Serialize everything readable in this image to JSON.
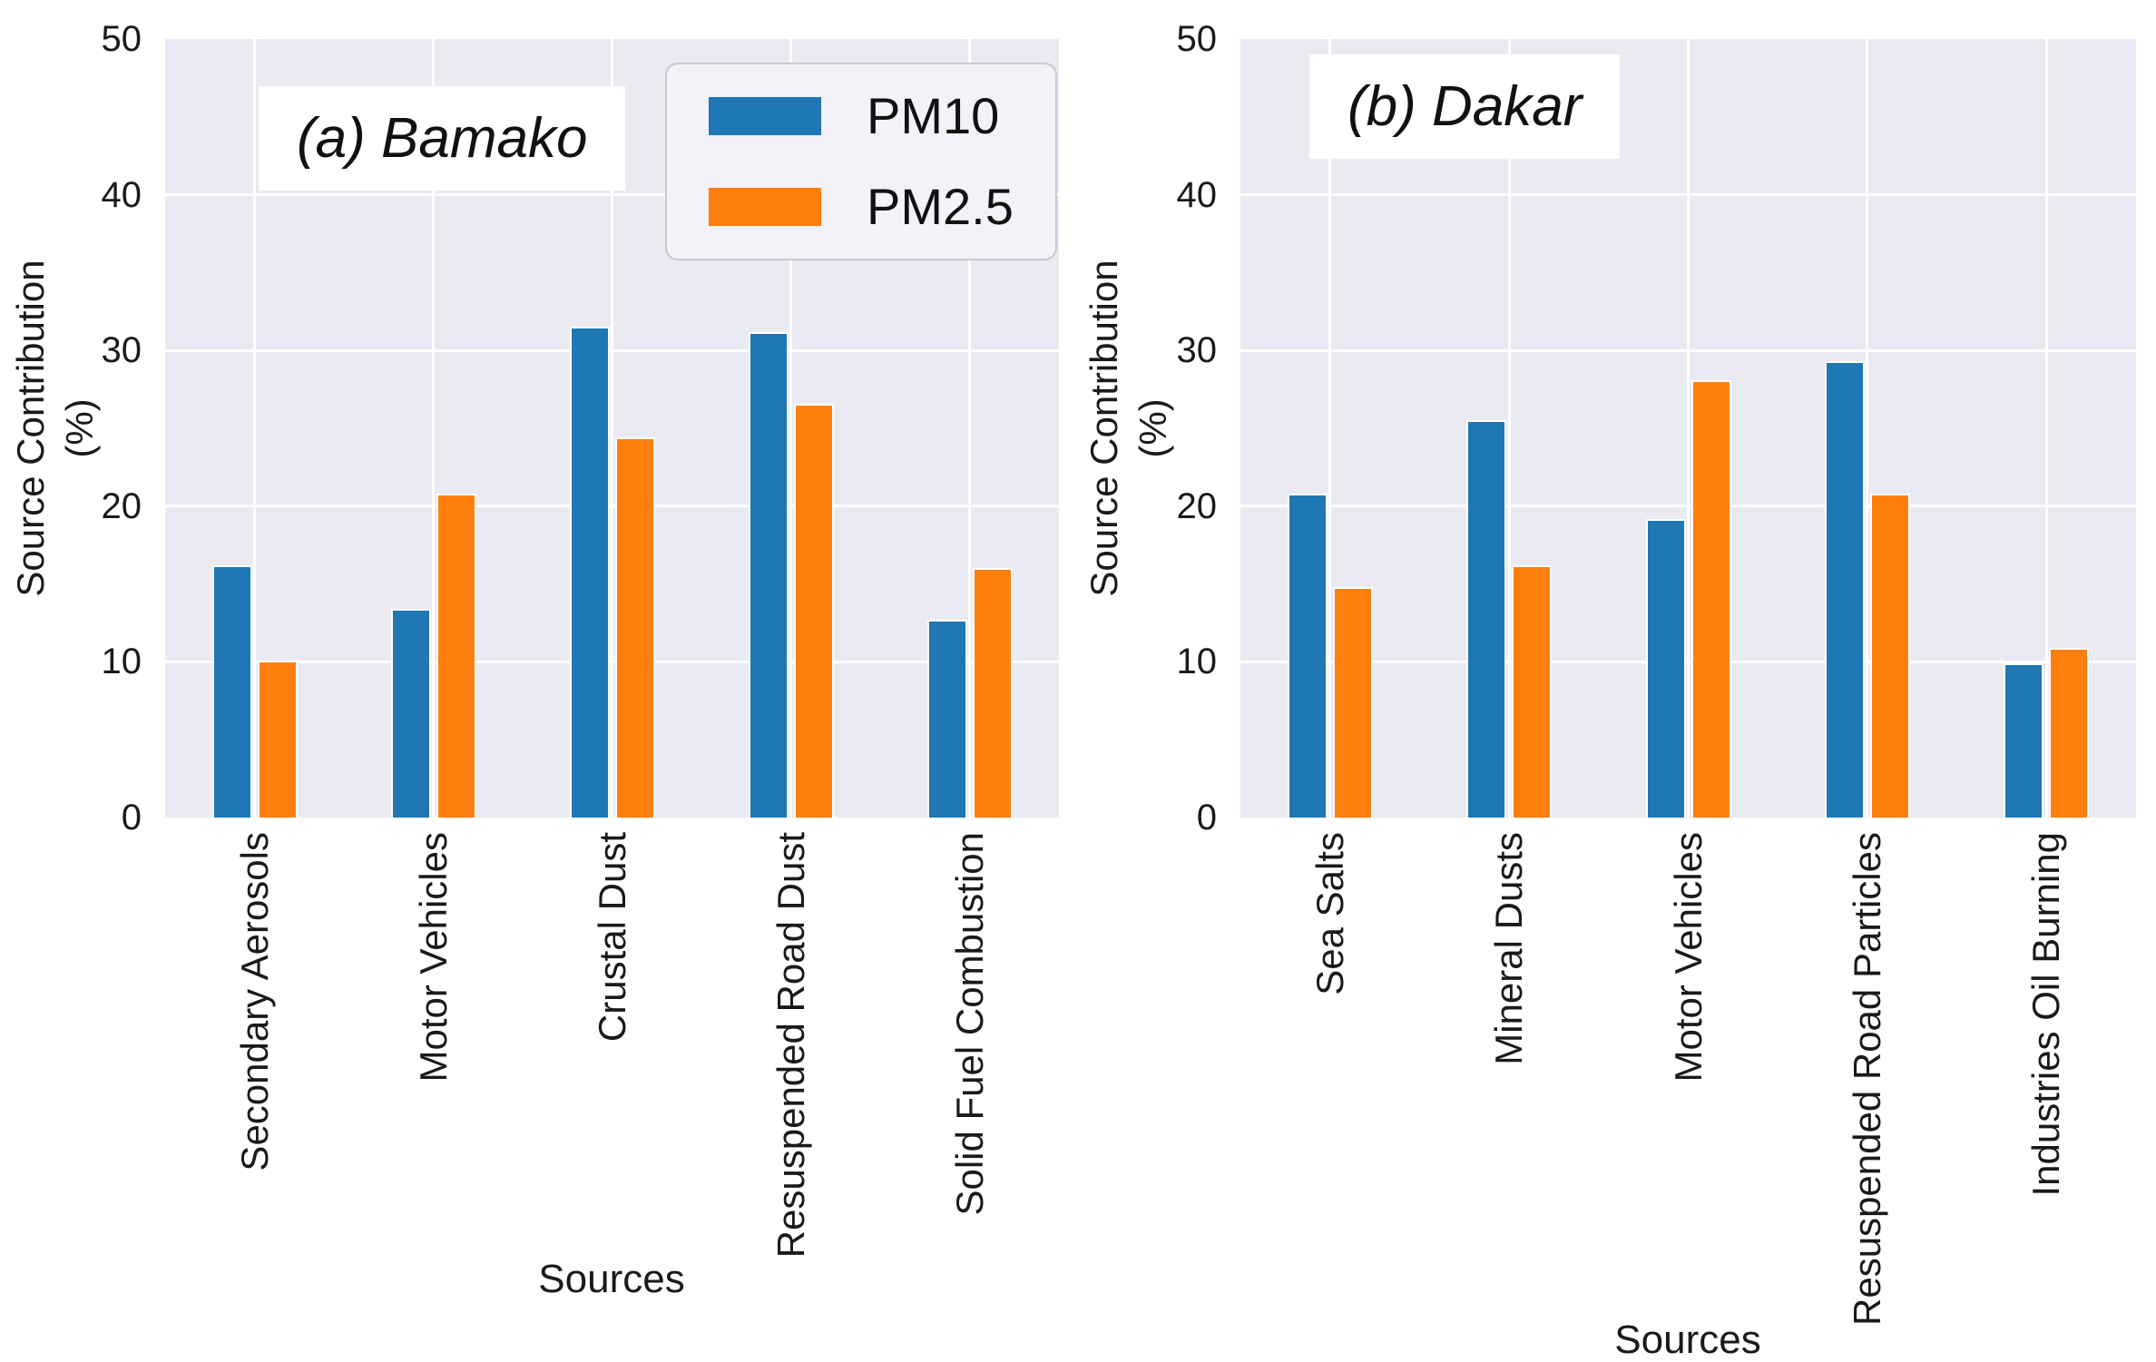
{
  "figure": {
    "background": "#ffffff",
    "plot_background": "#eaeaf2",
    "grid_color": "#ffffff",
    "text_color": "#1a1a1a",
    "legend": {
      "position": "upper-right-of-left-subplot",
      "items": [
        {
          "label": "PM10",
          "color": "#1f77b4"
        },
        {
          "label": "PM2.5",
          "color": "#ff7f0e"
        }
      ]
    }
  },
  "chart_data": [
    {
      "type": "bar",
      "title": "(a) Bamako",
      "xlabel": "Sources",
      "ylabel": "Source Contribution (%)",
      "ylabel_lines": [
        "Source Contribution",
        "(%)"
      ],
      "ylim": [
        0,
        50
      ],
      "yticks": [
        0,
        10,
        20,
        30,
        40,
        50
      ],
      "grid": true,
      "categories": [
        "Secondary Aerosols",
        "Motor Vehicles",
        "Crustal Dust",
        "Resuspended Road Dust",
        "Solid Fuel Combustion"
      ],
      "series": [
        {
          "name": "PM10",
          "color": "#1f77b4",
          "values": [
            16.2,
            13.4,
            31.5,
            31.2,
            12.7
          ]
        },
        {
          "name": "PM2.5",
          "color": "#ff7f0e",
          "values": [
            10.1,
            20.8,
            24.4,
            26.6,
            16.0
          ]
        }
      ]
    },
    {
      "type": "bar",
      "title": "(b) Dakar",
      "xlabel": "Sources",
      "ylabel": "Source Contribution (%)",
      "ylabel_lines": [
        "Source Contribution",
        "(%)"
      ],
      "ylim": [
        0,
        50
      ],
      "yticks": [
        0,
        10,
        20,
        30,
        40,
        50
      ],
      "grid": true,
      "categories": [
        "Sea Salts",
        "Mineral Dusts",
        "Motor Vehicles",
        "Resuspended Road Particles",
        "Industries Oil Burning"
      ],
      "series": [
        {
          "name": "PM10",
          "color": "#1f77b4",
          "values": [
            20.8,
            25.5,
            19.2,
            29.3,
            9.9
          ]
        },
        {
          "name": "PM2.5",
          "color": "#ff7f0e",
          "values": [
            14.8,
            16.2,
            28.1,
            20.8,
            10.9
          ]
        }
      ]
    }
  ]
}
